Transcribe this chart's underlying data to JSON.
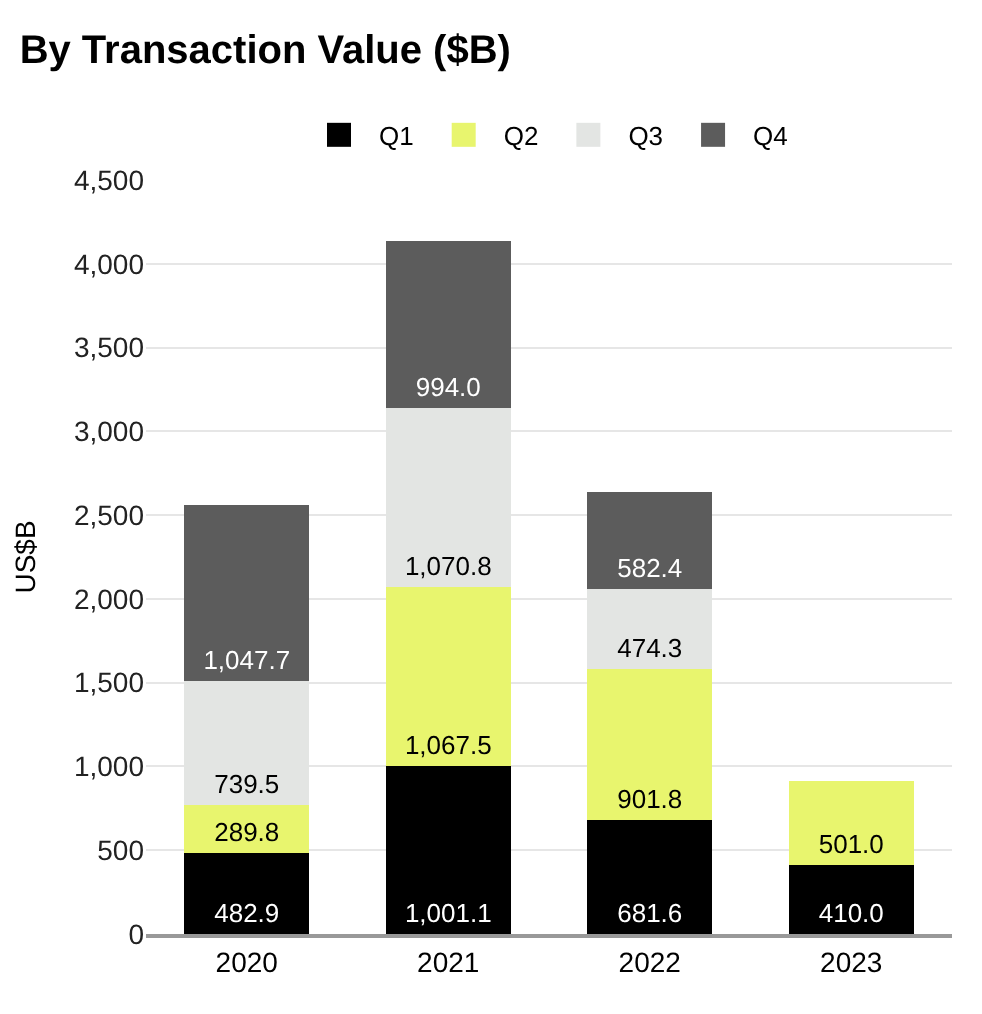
{
  "chart_data": {
    "type": "bar",
    "title": "By Transaction Value ($B)",
    "ylabel": "US$B",
    "stacked": true,
    "categories": [
      "2020",
      "2021",
      "2022",
      "2023"
    ],
    "series": [
      {
        "name": "Q1",
        "color": "#000000",
        "values": [
          482.9,
          1001.1,
          681.6,
          410.0
        ],
        "value_labels": [
          "482.9",
          "1,001.1",
          "681.6",
          "410.0"
        ]
      },
      {
        "name": "Q2",
        "color": "#e8f56e",
        "values": [
          289.8,
          1067.5,
          901.8,
          501.0
        ],
        "value_labels": [
          "289.8",
          "1,067.5",
          "901.8",
          "501.0"
        ]
      },
      {
        "name": "Q3",
        "color": "#e3e5e3",
        "values": [
          739.5,
          1070.8,
          474.3,
          null
        ],
        "value_labels": [
          "739.5",
          "1,070.8",
          "474.3",
          null
        ]
      },
      {
        "name": "Q4",
        "color": "#5c5c5c",
        "values": [
          1047.7,
          994.0,
          582.4,
          null
        ],
        "value_labels": [
          "1,047.7",
          "994.0",
          "582.4",
          null
        ]
      }
    ],
    "ylim": [
      0,
      4500
    ],
    "yticks": [
      0,
      500,
      {
        "value": 1000,
        "label": "1,000"
      },
      {
        "value": 1500,
        "label": "1,500"
      },
      {
        "value": 2000,
        "label": "2,000"
      },
      {
        "value": 2500,
        "label": "2,500"
      },
      {
        "value": 3000,
        "label": "3,000"
      },
      {
        "value": 3500,
        "label": "3,500"
      },
      {
        "value": 4000,
        "label": "4,000"
      },
      {
        "value": 4500,
        "label": "4,500"
      }
    ],
    "grid": "y",
    "legend": "top"
  }
}
